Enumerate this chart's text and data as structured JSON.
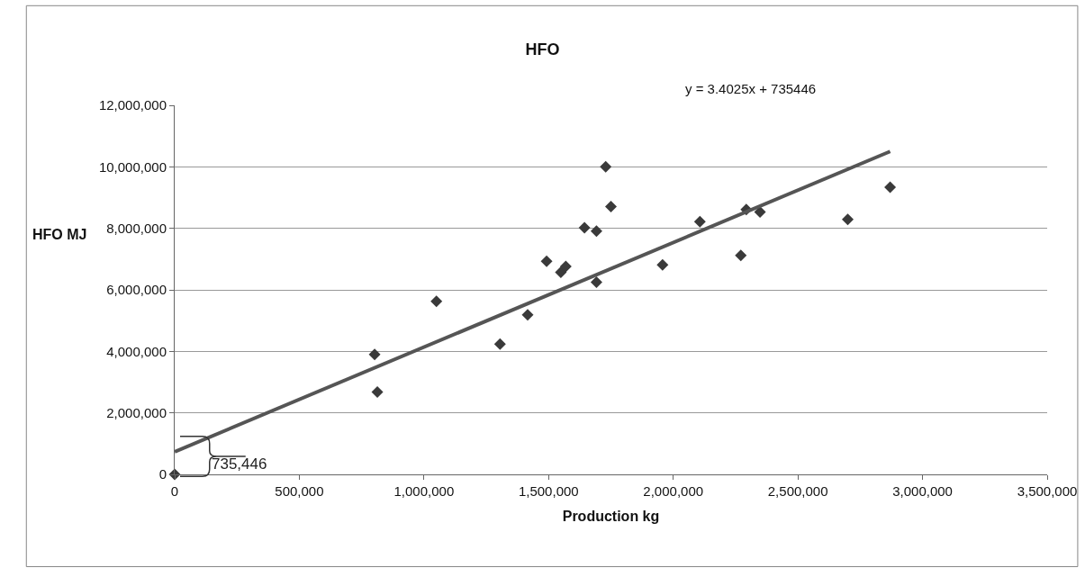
{
  "chart_data": {
    "type": "scatter",
    "title": "HFO",
    "xlabel": "Production kg",
    "ylabel": "HFO MJ",
    "annotations": [
      "y = 3.4025x + 735446",
      {
        "text": "735,446",
        "x": 0,
        "y": 735446
      }
    ],
    "series": [
      {
        "color": "#3a3a3a",
        "marker": "diamond",
        "x": [
          0,
          802000,
          813000,
          1050000,
          1305000,
          1416000,
          1492000,
          1549000,
          1569000,
          1644000,
          1692000,
          1692000,
          1729000,
          1750000,
          1957000,
          2107000,
          2271000,
          2293000,
          2348000,
          2700000,
          2870000
        ],
        "values": [
          0,
          3900000,
          2680000,
          5630000,
          4240000,
          5190000,
          6930000,
          6570000,
          6760000,
          8020000,
          7910000,
          6250000,
          10000000,
          8710000,
          6810000,
          8220000,
          7120000,
          8610000,
          8530000,
          8290000,
          9340000
        ]
      },
      {
        "type": "line",
        "color": "#555555",
        "marker": "none",
        "x": [
          0,
          2870000
        ],
        "values": [
          735446,
          10500000
        ]
      }
    ],
    "xlim": [
      0,
      3500000
    ],
    "xticks": [
      {
        "value": 0,
        "label": "0"
      },
      {
        "value": 500000,
        "label": "500,000"
      },
      {
        "value": 1000000,
        "label": "1,000,000"
      },
      {
        "value": 1500000,
        "label": "1,500,000"
      },
      {
        "value": 2000000,
        "label": "2,000,000"
      },
      {
        "value": 2500000,
        "label": "2,500,000"
      },
      {
        "value": 3000000,
        "label": "3,000,000"
      },
      {
        "value": 3500000,
        "label": "3,500,000"
      }
    ],
    "ylim": [
      0,
      12000000
    ],
    "yticks": [
      {
        "value": 0,
        "label": "0"
      },
      {
        "value": 2000000,
        "label": "2,000,000"
      },
      {
        "value": 4000000,
        "label": "4,000,000"
      },
      {
        "value": 6000000,
        "label": "6,000,000"
      },
      {
        "value": 8000000,
        "label": "8,000,000"
      },
      {
        "value": 10000000,
        "label": "10,000,000"
      },
      {
        "value": 12000000,
        "label": "12,000,000"
      }
    ],
    "grid": "y"
  }
}
